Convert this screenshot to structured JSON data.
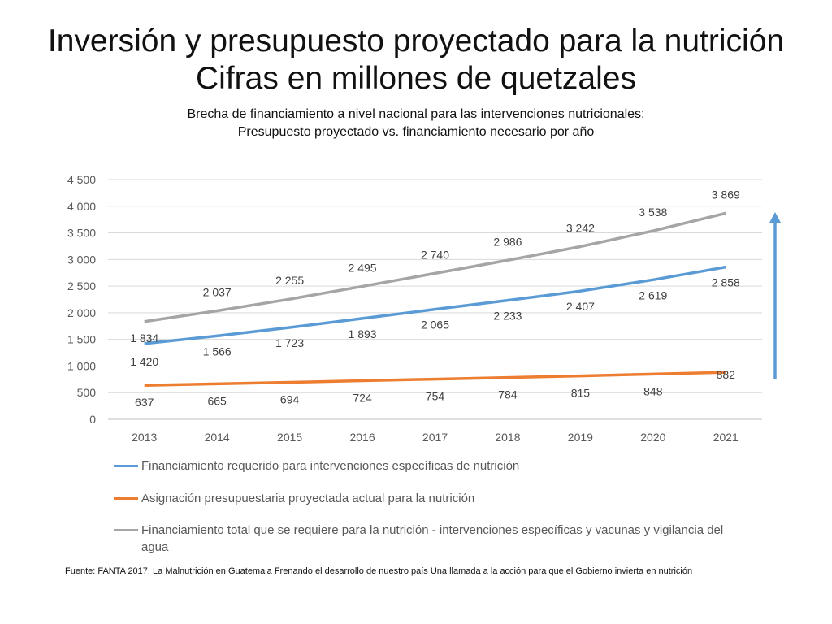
{
  "header": {
    "title_line1": "Inversión y presupuesto proyectado para la nutrición",
    "title_line2": "Cifras en millones de quetzales",
    "subtitle_line1": "Brecha de financiamiento a nivel nacional para las intervenciones nutricionales:",
    "subtitle_line2": "Presupuesto proyectado vs. financiamiento necesario por año"
  },
  "chart_data": {
    "type": "line",
    "x": [
      "2013",
      "2014",
      "2015",
      "2016",
      "2017",
      "2018",
      "2019",
      "2020",
      "2021"
    ],
    "ylim": [
      0,
      4500
    ],
    "yticks": [
      0,
      500,
      1000,
      1500,
      2000,
      2500,
      3000,
      3500,
      4000,
      4500
    ],
    "ytick_labels": [
      "0",
      "500",
      "1 000",
      "1 500",
      "2 000",
      "2 500",
      "3 000",
      "3 500",
      "4 000",
      "4 500"
    ],
    "grid": true,
    "legend_position": "bottom",
    "series": [
      {
        "name": "Financiamiento requerido para intervenciones específicas de nutrición",
        "color": "#5B9BD5",
        "values": [
          1420,
          1566,
          1723,
          1893,
          2065,
          2233,
          2407,
          2619,
          2858
        ],
        "labels": [
          "1 420",
          "1 566",
          "1 723",
          "1 893",
          "2 065",
          "2 233",
          "2 407",
          "2 619",
          "2 858"
        ]
      },
      {
        "name": "Asignación presupuestaria proyectada actual para la nutrición",
        "color": "#ED7D31",
        "values": [
          637,
          665,
          694,
          724,
          754,
          784,
          815,
          848,
          882
        ],
        "labels": [
          "637",
          "665",
          "694",
          "724",
          "754",
          "784",
          "815",
          "848",
          "882"
        ]
      },
      {
        "name": "Financiamiento total que se requiere para la nutrición - intervenciones específicas y vacunas y vigilancia del agua",
        "color": "#A5A5A5",
        "values": [
          1834,
          2037,
          2255,
          2495,
          2740,
          2986,
          3242,
          3538,
          3869
        ],
        "labels": [
          "1 834",
          "2 037",
          "2 255",
          "2 495",
          "2 740",
          "2 986",
          "3 242",
          "3 538",
          "3 869"
        ]
      }
    ],
    "annotation_arrow_color": "#5B9BD5"
  },
  "footer": {
    "source": "Fuente: FANTA 2017. La Malnutrición en Guatemala Frenando el desarrollo de nuestro país Una llamada a la acción para que el Gobierno invierta en nutrición"
  }
}
